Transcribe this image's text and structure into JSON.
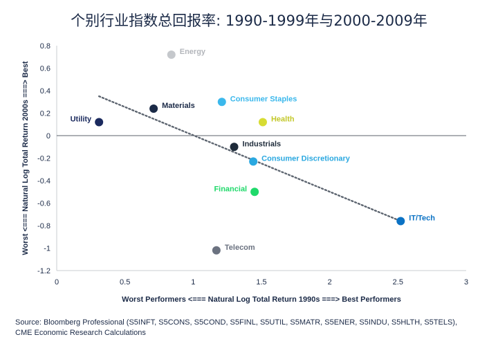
{
  "title": "个别行业指数总回报率: 1990-1999年与2000-2009年",
  "source_lines": [
    "Source: Bloomberg Professional (S5INFT, S5CONS, S5COND, S5FINL, S5UTIL, S5MATR, S5ENER, S5INDU, S5HLTH, S5TELS),",
    "CME Economic Research Calculations"
  ],
  "chart_data": {
    "type": "scatter",
    "title": "个别行业指数总回报率: 1990-1999年与2000-2009年",
    "xlabel": "Worst Performers <=== Natural Log Total Return 1990s ===> Best Performers",
    "ylabel": "Worst <=== Natural Log Total Return 2000s ===> Best",
    "xlim": [
      0,
      3
    ],
    "ylim": [
      -1.2,
      0.8
    ],
    "x_ticks": [
      0,
      0.5,
      1,
      1.5,
      2,
      2.5,
      3
    ],
    "x_tick_labels": [
      "0",
      "0.5",
      "1",
      "1.5",
      "2",
      "2.5",
      "3"
    ],
    "y_ticks": [
      0.8,
      0.6,
      0.4,
      0.2,
      0,
      -0.2,
      -0.4,
      -0.6,
      -0.8,
      -1,
      -1.2
    ],
    "y_tick_labels": [
      "0.8",
      "0.6",
      "0.4",
      "0.2",
      "0",
      "-0.2",
      "-0.4",
      "-0.6",
      "-0.8",
      "-1",
      "-1.2"
    ],
    "grid": false,
    "points": [
      {
        "label": "Energy",
        "x": 0.84,
        "y": 0.72,
        "color": "#c5c8cc",
        "label_color": "#b3b6bb",
        "label_side": "right"
      },
      {
        "label": "Materials",
        "x": 0.71,
        "y": 0.24,
        "color": "#1b2a47",
        "label_color": "#1b2a47",
        "label_side": "right"
      },
      {
        "label": "Consumer Staples",
        "x": 1.21,
        "y": 0.3,
        "color": "#3bb8ec",
        "label_color": "#3bb8ec",
        "label_side": "right"
      },
      {
        "label": "Health",
        "x": 1.51,
        "y": 0.12,
        "color": "#d7dc33",
        "label_color": "#c3c82a",
        "label_side": "right"
      },
      {
        "label": "Utility",
        "x": 0.31,
        "y": 0.12,
        "color": "#1b2a5e",
        "label_color": "#1b2a5e",
        "label_side": "left"
      },
      {
        "label": "Industrials",
        "x": 1.3,
        "y": -0.1,
        "color": "#1e2b3a",
        "label_color": "#1e2b3a",
        "label_side": "right"
      },
      {
        "label": "Consumer Discretionary",
        "x": 1.44,
        "y": -0.23,
        "color": "#2aa8e0",
        "label_color": "#2aa8e0",
        "label_side": "right"
      },
      {
        "label": "Financial",
        "x": 1.45,
        "y": -0.5,
        "color": "#1fd96a",
        "label_color": "#1fd96a",
        "label_side": "left"
      },
      {
        "label": "IT/Tech",
        "x": 2.52,
        "y": -0.76,
        "color": "#0b72c4",
        "label_color": "#0b72c4",
        "label_side": "right"
      },
      {
        "label": "Telecom",
        "x": 1.17,
        "y": -1.02,
        "color": "#6b7280",
        "label_color": "#6b7280",
        "label_side": "right"
      }
    ],
    "trendline": {
      "x": [
        0.31,
        2.52
      ],
      "y": [
        0.35,
        -0.76
      ],
      "style": "dotted",
      "color": "#5d6570"
    },
    "zero_line": true
  }
}
